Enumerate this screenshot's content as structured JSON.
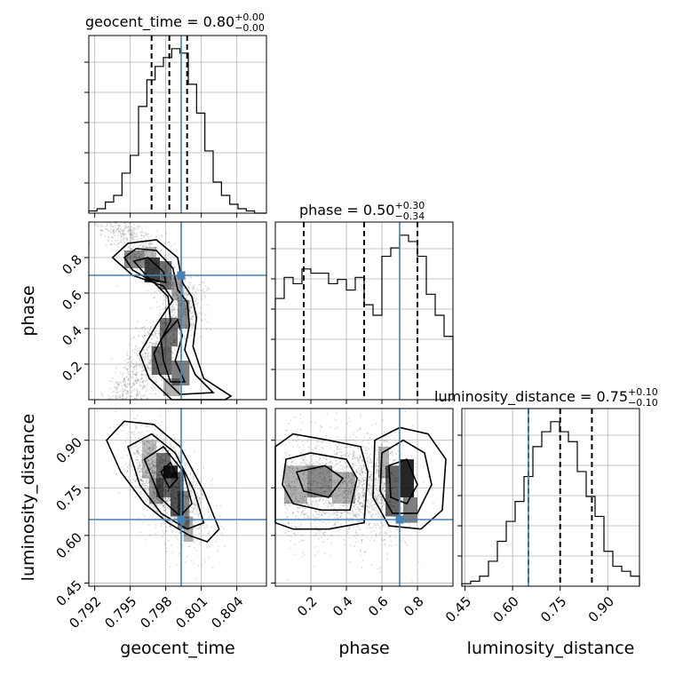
{
  "chart_data": {
    "type": "corner",
    "parameters": [
      "geocent_time",
      "phase",
      "luminosity_distance"
    ],
    "axis_labels": {
      "geocent_time": "geocent_time",
      "phase": "phase",
      "luminosity_distance": "luminosity_distance"
    },
    "ranges": {
      "geocent_time": [
        0.7915,
        0.8065
      ],
      "phase": [
        0.0,
        1.0
      ],
      "luminosity_distance": [
        0.44,
        1.0
      ]
    },
    "truths": {
      "geocent_time": 0.7993,
      "phase": 0.7,
      "luminosity_distance": 0.65
    },
    "titles": [
      {
        "param": "geocent_time",
        "text": "geocent_time = 0.80",
        "plus": "+0.00",
        "minus": "−0.00"
      },
      {
        "param": "phase",
        "text": "phase = 0.50",
        "plus": "+0.30",
        "minus": "−0.34"
      },
      {
        "param": "luminosity_distance",
        "text": "luminosity_distance = 0.75",
        "plus": "+0.10",
        "minus": "−0.10"
      }
    ],
    "quantiles": {
      "geocent_time": [
        0.7968,
        0.7983,
        0.7998
      ],
      "phase": [
        0.16,
        0.5,
        0.8
      ],
      "luminosity_distance": [
        0.65,
        0.75,
        0.85
      ]
    },
    "ticks": {
      "geocent_time": [
        {
          "value": 0.792,
          "label": "0.792"
        },
        {
          "value": 0.795,
          "label": "0.795"
        },
        {
          "value": 0.798,
          "label": "0.798"
        },
        {
          "value": 0.801,
          "label": "0.801"
        },
        {
          "value": 0.804,
          "label": "0.804"
        }
      ],
      "phase": [
        {
          "value": 0.2,
          "label": "0.2"
        },
        {
          "value": 0.4,
          "label": "0.4"
        },
        {
          "value": 0.6,
          "label": "0.6"
        },
        {
          "value": 0.8,
          "label": "0.8"
        }
      ],
      "luminosity_distance": [
        {
          "value": 0.45,
          "label": "0.45"
        },
        {
          "value": 0.6,
          "label": "0.60"
        },
        {
          "value": 0.75,
          "label": "0.75"
        },
        {
          "value": 0.9,
          "label": "0.90"
        }
      ]
    },
    "histograms": {
      "geocent_time": {
        "edges": [
          0.7915,
          0.7922,
          0.7929,
          0.7936,
          0.7943,
          0.795,
          0.7957,
          0.7964,
          0.7971,
          0.7978,
          0.7985,
          0.7992,
          0.7999,
          0.8006,
          0.8013,
          0.802,
          0.8027,
          0.8034,
          0.8041,
          0.8048,
          0.8055,
          0.8065
        ],
        "counts": [
          1,
          2,
          5,
          8,
          18,
          26,
          48,
          60,
          66,
          70,
          74,
          72,
          58,
          45,
          28,
          14,
          8,
          4,
          2,
          1,
          0
        ]
      },
      "phase": {
        "edges": [
          0.0,
          0.05,
          0.1,
          0.15,
          0.2,
          0.25,
          0.3,
          0.35,
          0.4,
          0.45,
          0.5,
          0.55,
          0.6,
          0.65,
          0.7,
          0.75,
          0.8,
          0.85,
          0.9,
          0.95,
          1.0
        ],
        "counts": [
          48,
          58,
          55,
          62,
          60,
          60,
          55,
          57,
          52,
          58,
          45,
          40,
          68,
          72,
          78,
          75,
          68,
          50,
          40,
          30
        ]
      },
      "luminosity_distance": {
        "edges": [
          0.44,
          0.468,
          0.496,
          0.524,
          0.552,
          0.58,
          0.608,
          0.636,
          0.664,
          0.692,
          0.72,
          0.748,
          0.776,
          0.804,
          0.832,
          0.86,
          0.888,
          0.916,
          0.944,
          0.972,
          1.0
        ],
        "counts": [
          1,
          2,
          4,
          10,
          18,
          26,
          34,
          44,
          56,
          62,
          66,
          62,
          58,
          46,
          36,
          28,
          14,
          8,
          6,
          4
        ]
      }
    }
  }
}
